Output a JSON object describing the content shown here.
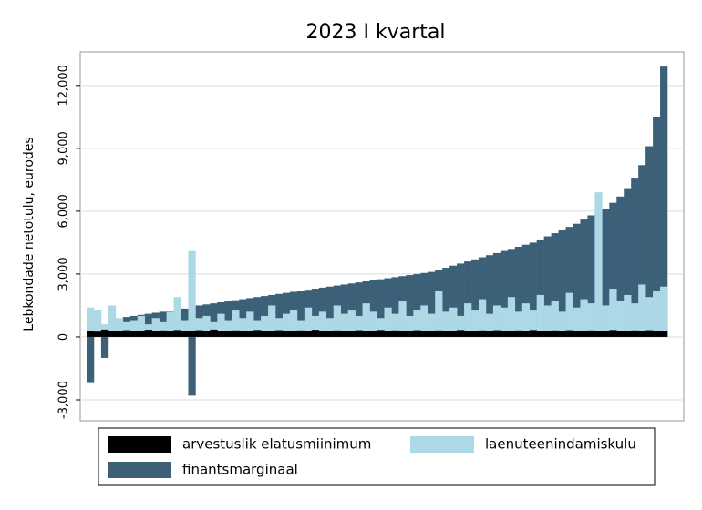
{
  "chart_data": {
    "type": "bar",
    "title": "2023 I kvartal",
    "y_label": "Lebkondade netotulu, eurodes",
    "ylim": [
      -4000,
      13600
    ],
    "yticks": [
      {
        "value": -3000,
        "label": "-3,000"
      },
      0,
      {
        "value": 3000,
        "label": "3,000"
      },
      {
        "value": 6000,
        "label": "6,000"
      },
      {
        "value": 9000,
        "label": "9,000"
      },
      {
        "value": 12000,
        "label": "12,000"
      }
    ],
    "grid": true,
    "series": [
      {
        "name": "arvestuslik elatusmiinimum",
        "color": "#000000",
        "values": [
          300,
          250,
          350,
          300,
          280,
          320,
          300,
          260,
          340,
          300,
          310,
          290,
          330,
          300,
          270,
          320,
          300,
          350,
          280,
          300,
          310,
          290,
          300,
          330,
          270,
          300,
          320,
          300,
          290,
          310,
          300,
          340,
          260,
          300,
          310,
          300,
          290,
          320,
          300,
          280,
          330,
          300,
          310,
          290,
          300,
          320,
          280,
          300,
          310,
          300,
          290,
          330,
          300,
          270,
          310,
          300,
          320,
          290,
          300,
          310,
          280,
          330,
          300,
          290,
          310,
          300,
          320,
          280,
          300,
          310,
          290,
          300,
          330,
          300,
          280,
          310,
          300,
          320,
          290,
          300
        ]
      },
      {
        "name": "laenuteenindamiskulu",
        "color": "#add8e6",
        "values": [
          1400,
          1300,
          600,
          1500,
          900,
          700,
          800,
          1000,
          600,
          900,
          700,
          1200,
          1900,
          800,
          4100,
          900,
          1000,
          700,
          1100,
          800,
          1300,
          900,
          1200,
          800,
          1000,
          1500,
          900,
          1100,
          1300,
          800,
          1400,
          1000,
          1200,
          900,
          1500,
          1100,
          1300,
          1000,
          1600,
          1200,
          900,
          1400,
          1100,
          1700,
          1000,
          1300,
          1500,
          1100,
          2200,
          1200,
          1400,
          1000,
          1600,
          1300,
          1800,
          1100,
          1500,
          1400,
          1900,
          1200,
          1600,
          1300,
          2000,
          1500,
          1700,
          1200,
          2100,
          1400,
          1800,
          1600,
          6900,
          1500,
          2300,
          1700,
          2000,
          1600,
          2500,
          1900,
          2200,
          2400
        ]
      },
      {
        "name": "finantsmarginaal",
        "color": "#3d6079",
        "values": [
          -2200,
          400,
          -1000,
          700,
          850,
          950,
          1000,
          1050,
          1100,
          1150,
          1200,
          1250,
          1300,
          1350,
          -2800,
          1500,
          1550,
          1600,
          1650,
          1700,
          1750,
          1800,
          1850,
          1900,
          1950,
          2000,
          2050,
          2100,
          2150,
          2200,
          2250,
          2300,
          2350,
          2400,
          2450,
          2500,
          2550,
          2600,
          2650,
          2700,
          2750,
          2800,
          2850,
          2900,
          2950,
          3000,
          3050,
          3100,
          3200,
          3300,
          3400,
          3500,
          3600,
          3700,
          3800,
          3900,
          4000,
          4100,
          4200,
          4300,
          4400,
          4500,
          4650,
          4800,
          4950,
          5100,
          5250,
          5400,
          5600,
          5800,
          5950,
          6100,
          6400,
          6700,
          7100,
          7600,
          8200,
          9100,
          10500,
          12900
        ]
      }
    ]
  }
}
